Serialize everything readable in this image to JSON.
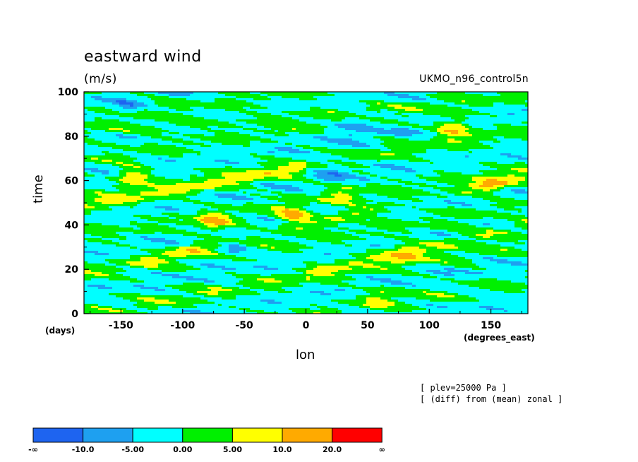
{
  "chart_data": {
    "type": "heatmap",
    "title": "eastward wind",
    "units": "(m/s)",
    "source": "UKMO_n96_control5n",
    "xlabel": "lon",
    "xunit": "(degrees_east)",
    "ylabel": "time",
    "yunit": "(days)",
    "xlim": [
      -180,
      180
    ],
    "ylim": [
      0,
      100
    ],
    "x_ticks": [
      -150,
      -100,
      -50,
      0,
      50,
      100,
      150
    ],
    "y_ticks": [
      0,
      20,
      40,
      60,
      80,
      100
    ],
    "notes": [
      "[ plev=25000 Pa ]",
      "[ (diff) from (mean) zonal ]"
    ],
    "colorbar": {
      "labels": [
        "-∞",
        "-10.0",
        "-5.00",
        "0.00",
        "5.00",
        "10.0",
        "20.0",
        "∞"
      ],
      "colors": [
        "#1e64f0",
        "#1ea0f0",
        "#00ffff",
        "#00f000",
        "#ffff00",
        "#ffaa00",
        "#ff0000"
      ]
    },
    "features": [
      {
        "lon": 120,
        "time": 84,
        "value": 22
      },
      {
        "lon": -10,
        "time": 44,
        "value": 21
      },
      {
        "lon": -75,
        "time": 41,
        "value": 21
      },
      {
        "lon": -140,
        "time": 62,
        "value": 21
      },
      {
        "lon": 30,
        "time": 54,
        "value": 12
      },
      {
        "lon": 150,
        "time": 58,
        "value": 12
      },
      {
        "lon": 80,
        "time": 27,
        "value": 15
      },
      {
        "lon": 60,
        "time": 8,
        "value": 12
      }
    ]
  }
}
